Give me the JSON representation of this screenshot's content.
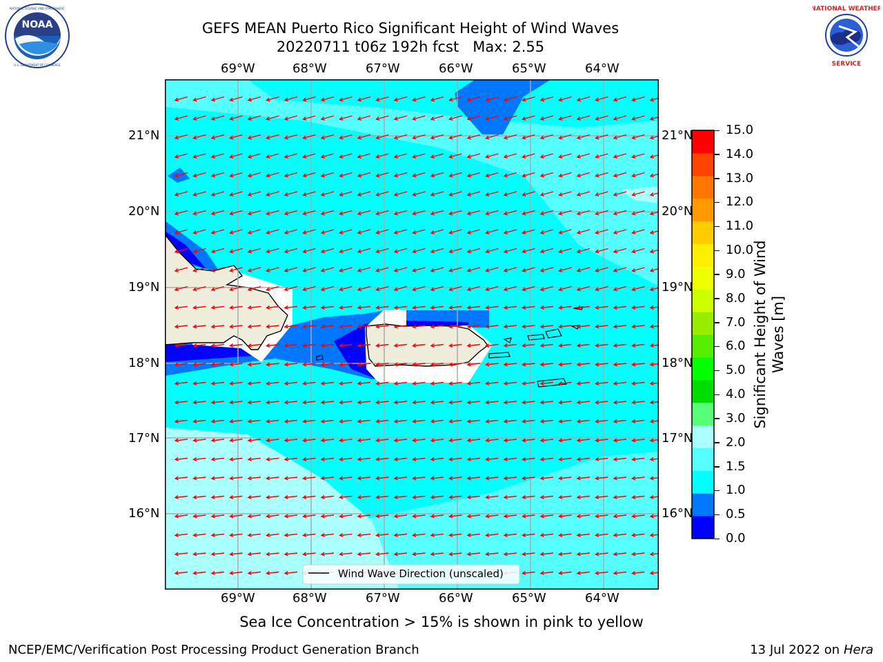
{
  "title": {
    "line1": "GEFS MEAN Puerto Rico Significant Height of Wind Waves",
    "line2": "20220711 t06z 192h fcst   Max: 2.55"
  },
  "logos": {
    "left_name": "noaa-logo",
    "left_text": "NOAA",
    "left_ring_text": "NATIONAL OCEANIC AND ATMOSPHERIC ADMINISTRATION · U.S. DEPARTMENT OF COMMERCE",
    "right_name": "nws-logo",
    "right_ring_text": "NATIONAL WEATHER SERVICE"
  },
  "map": {
    "lon_ticks": [
      "69°W",
      "68°W",
      "67°W",
      "66°W",
      "65°W",
      "64°W"
    ],
    "lat_ticks": [
      "21°N",
      "20°N",
      "19°N",
      "18°N",
      "17°N",
      "16°N"
    ],
    "lon_range": [
      -70.0,
      -63.25
    ],
    "lat_range": [
      15.0,
      21.75
    ],
    "grid": true,
    "legend_label": "Wind Wave Direction (unscaled)",
    "arrow_color": "#ff0000",
    "land_color": "#efeddc",
    "coast_color": "#000000",
    "arrow_direction": "toward west / west-southwest"
  },
  "colorbar": {
    "label": "Significant Height of Wind Waves [m]",
    "label_line1": "Significant Height of Wind",
    "label_line2": "Waves [m]",
    "ticks": [
      "0.0",
      "0.5",
      "1.0",
      "1.5",
      "2.0",
      "3.0",
      "4.0",
      "5.0",
      "6.0",
      "7.0",
      "8.0",
      "9.0",
      "10.0",
      "11.0",
      "12.0",
      "13.0",
      "14.0",
      "15.0"
    ],
    "colors": [
      "#0000ff",
      "#0077ff",
      "#00ffff",
      "#55ffff",
      "#aaffff",
      "#55ff77",
      "#00dd00",
      "#00ff00",
      "#55ee00",
      "#99ee00",
      "#ccff00",
      "#eeff00",
      "#ffee00",
      "#ffcc00",
      "#ff9900",
      "#ff7700",
      "#ff4400",
      "#ff0000"
    ]
  },
  "chart_data": {
    "type": "heatmap",
    "title": "GEFS MEAN Puerto Rico Significant Height of Wind Waves",
    "subtitle": "20220711 t06z 192h fcst   Max: 2.55",
    "max": 2.55,
    "units": "m",
    "regions": [
      {
        "area": "most of domain",
        "range_m": [
          1.0,
          1.5
        ]
      },
      {
        "area": "south-west open ocean",
        "range_m": [
          2.0,
          3.0
        ]
      },
      {
        "area": "east / north-east of Puerto Rico",
        "range_m": [
          1.5,
          2.0
        ]
      },
      {
        "area": "Mona Passage and Hispaniola south coast",
        "range_m": [
          0.0,
          1.0
        ]
      },
      {
        "area": "north-east corner near 21.5N 65.5W",
        "range_m": [
          0.5,
          1.0
        ]
      }
    ]
  },
  "note": "Sea Ice Concentration > 15% is shown in pink to yellow",
  "footer": {
    "left": "NCEP/EMC/Verification Post Processing Product Generation Branch",
    "right_date": "13 Jul 2022 on ",
    "right_host": "Hera"
  }
}
